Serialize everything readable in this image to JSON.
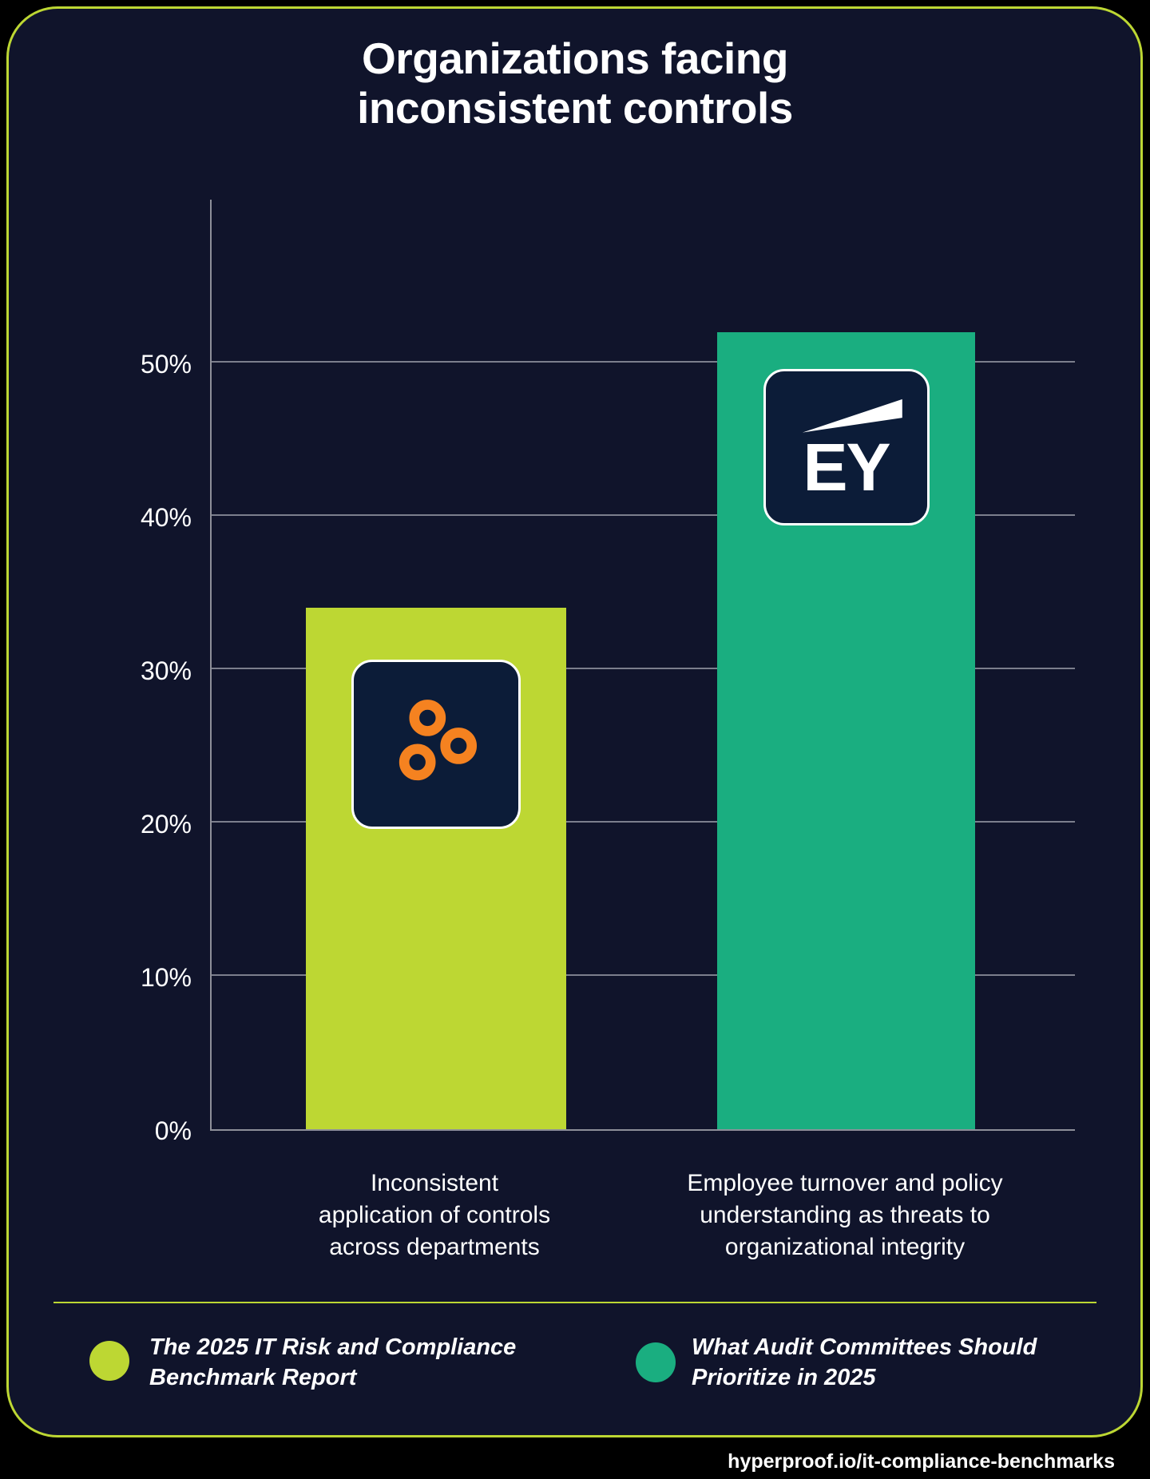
{
  "page": {
    "title_lines": [
      "Organizations facing",
      "inconsistent controls"
    ],
    "footer_url": "hyperproof.io/it-compliance-benchmarks"
  },
  "chart_data": {
    "type": "bar",
    "title": "Organizations facacing inconsistent controls",
    "unit": "%",
    "ylim": [
      0,
      60
    ],
    "grid": true,
    "legend_position": "bottom",
    "yticks": [
      0,
      10,
      20,
      30,
      40,
      50
    ],
    "ytick_labels": [
      "0%",
      "10%",
      "20%",
      "30%",
      "40%",
      "50%"
    ],
    "categories": [
      "Inconsistent application of controls across departments",
      "Employee turnover and policy understanding as threats to organizational integrity"
    ],
    "category_lines": [
      [
        "Inconsistent",
        "application of controls",
        "across departments"
      ],
      [
        "Employee turnover and policy",
        "understanding as threats to",
        "organizational integrity"
      ]
    ],
    "values": [
      34,
      52
    ],
    "bar_colors": [
      "#bdd733",
      "#1aae80"
    ],
    "bar_logos": [
      "hyperproof-logo",
      "ey-logo"
    ],
    "sources": [
      "The 2025 IT Risk and Compliance Benchmark Report",
      "What Audit Committees Should Prioritize in 2025"
    ]
  },
  "logos": {
    "ey_text": "EY"
  },
  "legend": {
    "items": [
      {
        "color": "#bdd733",
        "lines": [
          "The 2025 IT Risk and Compliance",
          "Benchmark Report"
        ]
      },
      {
        "color": "#1aae80",
        "lines": [
          "What Audit Committees Should",
          "Prioritize in 2025"
        ]
      }
    ]
  },
  "colors": {
    "background": "#000000",
    "card_bg": "#10142b",
    "card_border": "#bdd733",
    "lime": "#bdd733",
    "teal": "#1aae80",
    "orange": "#f58220",
    "logo_box_navy": "#0c1c38",
    "gridline": "#8d8f99",
    "text": "#ffffff"
  }
}
